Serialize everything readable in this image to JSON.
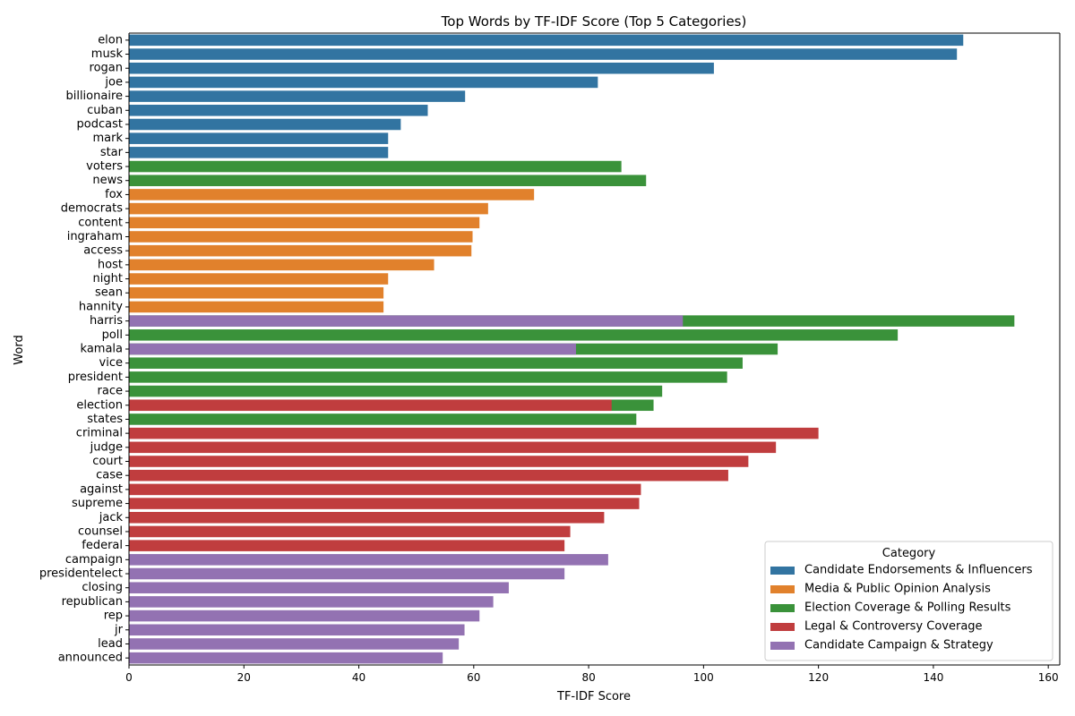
{
  "chart_data": {
    "type": "bar",
    "orientation": "horizontal",
    "title": "Top Words by TF-IDF Score (Top 5 Categories)",
    "xlabel": "TF-IDF Score",
    "ylabel": "Word",
    "xlim": [
      0,
      162
    ],
    "xticks": [
      0,
      20,
      40,
      60,
      80,
      100,
      120,
      140,
      160
    ],
    "grid": false,
    "legend": {
      "title": "Category",
      "placement": "lower-right",
      "entries": [
        {
          "name": "Candidate Endorsements & Influencers",
          "color": "#3274a1"
        },
        {
          "name": "Media & Public Opinion Analysis",
          "color": "#e1812c"
        },
        {
          "name": "Election Coverage & Polling Results",
          "color": "#3a923a"
        },
        {
          "name": "Legal & Controversy Coverage",
          "color": "#c03d3e"
        },
        {
          "name": "Candidate Campaign & Strategy",
          "color": "#9372b2"
        }
      ]
    },
    "bars": [
      {
        "word": "elon",
        "segments": [
          {
            "category": 0,
            "value": 145.2
          }
        ]
      },
      {
        "word": "musk",
        "segments": [
          {
            "category": 0,
            "value": 144.1
          }
        ]
      },
      {
        "word": "rogan",
        "segments": [
          {
            "category": 0,
            "value": 101.8
          }
        ]
      },
      {
        "word": "joe",
        "segments": [
          {
            "category": 0,
            "value": 81.6
          }
        ]
      },
      {
        "word": "billionaire",
        "segments": [
          {
            "category": 0,
            "value": 58.5
          }
        ]
      },
      {
        "word": "cuban",
        "segments": [
          {
            "category": 0,
            "value": 52.0
          }
        ]
      },
      {
        "word": "podcast",
        "segments": [
          {
            "category": 0,
            "value": 47.3
          }
        ]
      },
      {
        "word": "mark",
        "segments": [
          {
            "category": 0,
            "value": 45.1
          }
        ]
      },
      {
        "word": "star",
        "segments": [
          {
            "category": 0,
            "value": 45.1
          }
        ]
      },
      {
        "word": "voters",
        "segments": [
          {
            "category": 2,
            "value": 85.7
          }
        ]
      },
      {
        "word": "news",
        "segments": [
          {
            "category": 2,
            "value": 90.0
          }
        ]
      },
      {
        "word": "fox",
        "segments": [
          {
            "category": 1,
            "value": 70.5
          }
        ]
      },
      {
        "word": "democrats",
        "segments": [
          {
            "category": 1,
            "value": 62.5
          }
        ]
      },
      {
        "word": "content",
        "segments": [
          {
            "category": 1,
            "value": 61.0
          }
        ]
      },
      {
        "word": "ingraham",
        "segments": [
          {
            "category": 1,
            "value": 59.8
          }
        ]
      },
      {
        "word": "access",
        "segments": [
          {
            "category": 1,
            "value": 59.6
          }
        ]
      },
      {
        "word": "host",
        "segments": [
          {
            "category": 1,
            "value": 53.1
          }
        ]
      },
      {
        "word": "night",
        "segments": [
          {
            "category": 1,
            "value": 45.1
          }
        ]
      },
      {
        "word": "sean",
        "segments": [
          {
            "category": 1,
            "value": 44.3
          }
        ]
      },
      {
        "word": "hannity",
        "segments": [
          {
            "category": 1,
            "value": 44.3
          }
        ]
      },
      {
        "word": "harris",
        "segments": [
          {
            "category": 2,
            "value": 154.1
          },
          {
            "category": 4,
            "value": 96.4
          }
        ]
      },
      {
        "word": "poll",
        "segments": [
          {
            "category": 2,
            "value": 133.8
          }
        ]
      },
      {
        "word": "kamala",
        "segments": [
          {
            "category": 2,
            "value": 112.9
          },
          {
            "category": 4,
            "value": 77.8
          }
        ]
      },
      {
        "word": "vice",
        "segments": [
          {
            "category": 2,
            "value": 106.8
          }
        ]
      },
      {
        "word": "president",
        "segments": [
          {
            "category": 2,
            "value": 104.1
          }
        ]
      },
      {
        "word": "race",
        "segments": [
          {
            "category": 2,
            "value": 92.8
          }
        ]
      },
      {
        "word": "election",
        "segments": [
          {
            "category": 2,
            "value": 91.3
          },
          {
            "category": 3,
            "value": 84.0
          }
        ]
      },
      {
        "word": "states",
        "segments": [
          {
            "category": 2,
            "value": 88.3
          }
        ]
      },
      {
        "word": "criminal",
        "segments": [
          {
            "category": 3,
            "value": 120.0
          }
        ]
      },
      {
        "word": "judge",
        "segments": [
          {
            "category": 3,
            "value": 112.6
          }
        ]
      },
      {
        "word": "court",
        "segments": [
          {
            "category": 3,
            "value": 107.8
          }
        ]
      },
      {
        "word": "case",
        "segments": [
          {
            "category": 3,
            "value": 104.3
          }
        ]
      },
      {
        "word": "against",
        "segments": [
          {
            "category": 3,
            "value": 89.1
          }
        ]
      },
      {
        "word": "supreme",
        "segments": [
          {
            "category": 3,
            "value": 88.8
          }
        ]
      },
      {
        "word": "jack",
        "segments": [
          {
            "category": 3,
            "value": 82.7
          }
        ]
      },
      {
        "word": "counsel",
        "segments": [
          {
            "category": 3,
            "value": 76.8
          }
        ]
      },
      {
        "word": "federal",
        "segments": [
          {
            "category": 3,
            "value": 75.8
          }
        ]
      },
      {
        "word": "campaign",
        "segments": [
          {
            "category": 4,
            "value": 83.4
          }
        ]
      },
      {
        "word": "presidentelect",
        "segments": [
          {
            "category": 4,
            "value": 75.8
          }
        ]
      },
      {
        "word": "closing",
        "segments": [
          {
            "category": 4,
            "value": 66.1
          }
        ]
      },
      {
        "word": "republican",
        "segments": [
          {
            "category": 4,
            "value": 63.4
          }
        ]
      },
      {
        "word": "rep",
        "segments": [
          {
            "category": 4,
            "value": 61.0
          }
        ]
      },
      {
        "word": "jr",
        "segments": [
          {
            "category": 4,
            "value": 58.4
          }
        ]
      },
      {
        "word": "lead",
        "segments": [
          {
            "category": 4,
            "value": 57.4
          }
        ]
      },
      {
        "word": "announced",
        "segments": [
          {
            "category": 4,
            "value": 54.6
          }
        ]
      }
    ]
  }
}
